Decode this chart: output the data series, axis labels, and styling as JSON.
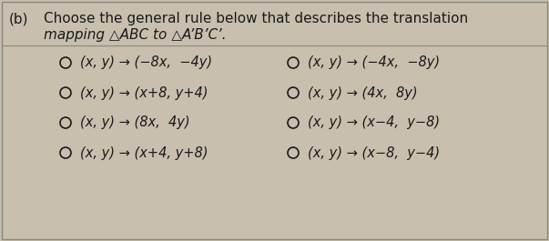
{
  "title_b": "(b)",
  "title_text1": "Choose the general rule below that describes the translation",
  "title_text2": "mapping △ABC to △A’B’C’.",
  "background_color": "#c8bfae",
  "text_color": "#1a1a1a",
  "border_color": "#888880",
  "separator_color": "#888880",
  "options_left": [
    "(x, y) → (−8x,  −4y)",
    "(x, y) → (x+8, y+4)",
    "(x, y) → (8x,  4y)",
    "(x, y) → (x+4, y+8)"
  ],
  "options_right": [
    "(x, y) → (−4x,  −8y)",
    "(x, y) → (4x,  8y)",
    "(x, y) → (x−4,  y−8)",
    "(x, y) → (x−8,  y−4)"
  ],
  "figsize": [
    6.03,
    2.65
  ],
  "dpi": 100
}
